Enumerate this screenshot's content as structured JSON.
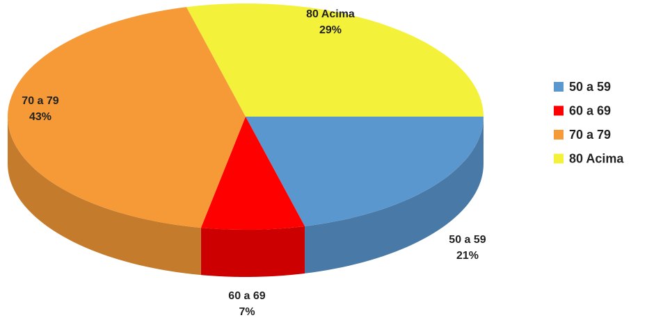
{
  "chart_data": {
    "type": "pie",
    "categories": [
      "50 a 59",
      "60 a 69",
      "70 a 79",
      "80 Acima"
    ],
    "values": [
      21,
      7,
      43,
      29
    ],
    "value_labels": [
      "21%",
      "7%",
      "43%",
      "29%"
    ],
    "colors": [
      "#5b97cf",
      "#ff0000",
      "#f59a36",
      "#f4f13b"
    ],
    "legend": "right"
  }
}
